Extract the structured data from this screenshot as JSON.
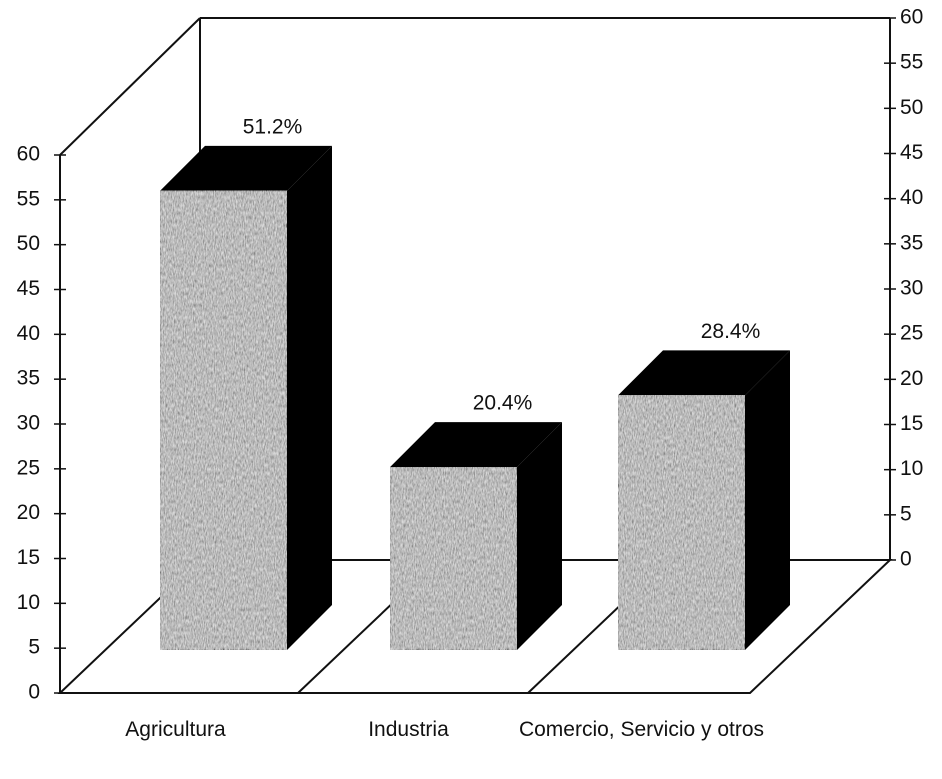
{
  "chart_data": {
    "type": "bar3d",
    "categories": [
      "Agricultura",
      "Industria",
      "Comercio, Servicio y otros"
    ],
    "values": [
      51.2,
      20.4,
      28.4
    ],
    "value_labels": [
      "51.2%",
      "20.4%",
      "28.4%"
    ],
    "color": "#6e6e6e",
    "ylim": [
      0,
      60
    ],
    "yticks": [
      0,
      5,
      10,
      15,
      20,
      25,
      30,
      35,
      40,
      45,
      50,
      55,
      60
    ],
    "y2lim": [
      0,
      60
    ],
    "y2ticks": [
      0,
      5,
      10,
      15,
      20,
      25,
      30,
      35,
      40,
      45,
      50,
      55,
      60
    ]
  }
}
